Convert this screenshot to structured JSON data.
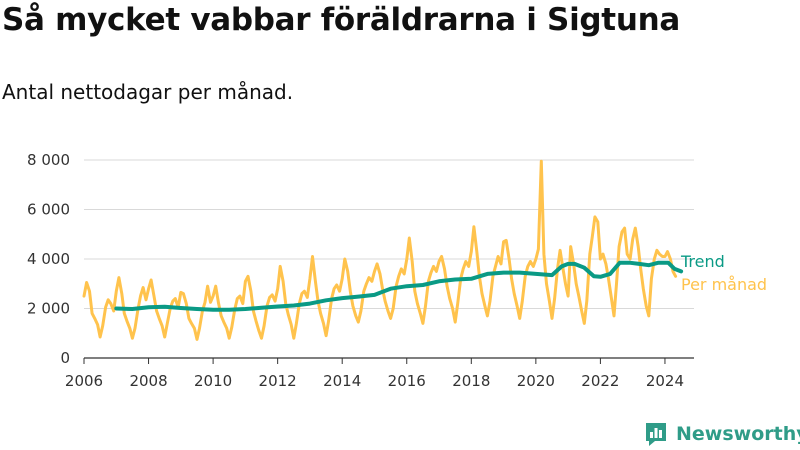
{
  "title": "Så mycket vabbar föräldrarna i Sigtuna",
  "subtitle": "Antal nettodagar per månad.",
  "logo": {
    "text": "Newsworthy",
    "color": "#2f9c88",
    "icon": "chat-bar-chart-icon"
  },
  "colors": {
    "trend": "#0a9a85",
    "monthly": "#ffc34d",
    "grid": "#d9d9d9",
    "axis": "#333333"
  },
  "chart_data": {
    "type": "line",
    "title": "Så mycket vabbar föräldrarna i Sigtuna",
    "subtitle": "Antal nettodagar per månad.",
    "ylim": [
      0,
      8000
    ],
    "yticks": [
      0,
      2000,
      4000,
      6000,
      8000
    ],
    "ytick_labels": [
      "0",
      "2 000",
      "4 000",
      "6 000",
      "8 000"
    ],
    "xlim": [
      2006,
      2024.9
    ],
    "xticks": [
      2006,
      2008,
      2010,
      2012,
      2014,
      2016,
      2018,
      2020,
      2022,
      2024
    ],
    "xtick_labels": [
      "2006",
      "2008",
      "2010",
      "2012",
      "2014",
      "2016",
      "2018",
      "2020",
      "2022",
      "2024"
    ],
    "grid": true,
    "legend": "right, labels at line ends",
    "series": [
      {
        "name": "Per månad",
        "color": "#ffc34d",
        "x": [
          2006.0,
          2006.08,
          2006.17,
          2006.25,
          2006.33,
          2006.42,
          2006.5,
          2006.58,
          2006.67,
          2006.75,
          2006.83,
          2006.92,
          2007.0,
          2007.08,
          2007.17,
          2007.25,
          2007.33,
          2007.42,
          2007.5,
          2007.58,
          2007.67,
          2007.75,
          2007.83,
          2007.92,
          2008.0,
          2008.08,
          2008.17,
          2008.25,
          2008.33,
          2008.42,
          2008.5,
          2008.58,
          2008.67,
          2008.75,
          2008.83,
          2008.92,
          2009.0,
          2009.08,
          2009.17,
          2009.25,
          2009.33,
          2009.42,
          2009.5,
          2009.58,
          2009.67,
          2009.75,
          2009.83,
          2009.92,
          2010.0,
          2010.08,
          2010.17,
          2010.25,
          2010.33,
          2010.42,
          2010.5,
          2010.58,
          2010.67,
          2010.75,
          2010.83,
          2010.92,
          2011.0,
          2011.08,
          2011.17,
          2011.25,
          2011.33,
          2011.42,
          2011.5,
          2011.58,
          2011.67,
          2011.75,
          2011.83,
          2011.92,
          2012.0,
          2012.08,
          2012.17,
          2012.25,
          2012.33,
          2012.42,
          2012.5,
          2012.58,
          2012.67,
          2012.75,
          2012.83,
          2012.92,
          2013.0,
          2013.08,
          2013.17,
          2013.25,
          2013.33,
          2013.42,
          2013.5,
          2013.58,
          2013.67,
          2013.75,
          2013.83,
          2013.92,
          2014.0,
          2014.08,
          2014.17,
          2014.25,
          2014.33,
          2014.42,
          2014.5,
          2014.58,
          2014.67,
          2014.75,
          2014.83,
          2014.92,
          2015.0,
          2015.08,
          2015.17,
          2015.25,
          2015.33,
          2015.42,
          2015.5,
          2015.58,
          2015.67,
          2015.75,
          2015.83,
          2015.92,
          2016.0,
          2016.08,
          2016.17,
          2016.25,
          2016.33,
          2016.42,
          2016.5,
          2016.58,
          2016.67,
          2016.75,
          2016.83,
          2016.92,
          2017.0,
          2017.08,
          2017.17,
          2017.25,
          2017.33,
          2017.42,
          2017.5,
          2017.58,
          2017.67,
          2017.75,
          2017.83,
          2017.92,
          2018.0,
          2018.08,
          2018.17,
          2018.25,
          2018.33,
          2018.42,
          2018.5,
          2018.58,
          2018.67,
          2018.75,
          2018.83,
          2018.92,
          2019.0,
          2019.08,
          2019.17,
          2019.25,
          2019.33,
          2019.42,
          2019.5,
          2019.58,
          2019.67,
          2019.75,
          2019.83,
          2019.92,
          2020.0,
          2020.08,
          2020.17,
          2020.25,
          2020.33,
          2020.42,
          2020.5,
          2020.58,
          2020.67,
          2020.75,
          2020.83,
          2020.92,
          2021.0,
          2021.08,
          2021.17,
          2021.25,
          2021.33,
          2021.42,
          2021.5,
          2021.58,
          2021.67,
          2021.75,
          2021.83,
          2021.92,
          2022.0,
          2022.08,
          2022.17,
          2022.25,
          2022.33,
          2022.42,
          2022.5,
          2022.58,
          2022.67,
          2022.75,
          2022.83,
          2022.92,
          2023.0,
          2023.08,
          2023.17,
          2023.25,
          2023.33,
          2023.42,
          2023.5,
          2023.58,
          2023.67,
          2023.75,
          2023.83,
          2023.92,
          2024.0,
          2024.08,
          2024.17,
          2024.25,
          2024.33
        ],
        "y": [
          2500,
          3050,
          2700,
          1800,
          1600,
          1350,
          850,
          1300,
          2050,
          2350,
          2200,
          1900,
          2700,
          3250,
          2600,
          1800,
          1500,
          1200,
          800,
          1200,
          1950,
          2500,
          2850,
          2350,
          2800,
          3150,
          2500,
          1900,
          1600,
          1300,
          850,
          1400,
          2000,
          2300,
          2400,
          2050,
          2650,
          2600,
          2200,
          1600,
          1400,
          1200,
          750,
          1200,
          1900,
          2250,
          2900,
          2250,
          2500,
          2900,
          2200,
          1700,
          1450,
          1200,
          800,
          1250,
          1950,
          2400,
          2500,
          2200,
          3100,
          3300,
          2700,
          1900,
          1500,
          1100,
          800,
          1300,
          2100,
          2450,
          2550,
          2300,
          2800,
          3700,
          3100,
          2200,
          1750,
          1350,
          800,
          1400,
          2200,
          2600,
          2700,
          2450,
          3200,
          4100,
          3100,
          2300,
          1800,
          1400,
          900,
          1500,
          2400,
          2800,
          2950,
          2700,
          3200,
          4000,
          3500,
          2700,
          2100,
          1700,
          1450,
          1900,
          2700,
          3000,
          3250,
          3100,
          3500,
          3800,
          3400,
          2800,
          2300,
          1900,
          1600,
          2000,
          2900,
          3300,
          3600,
          3400,
          4000,
          4850,
          3900,
          2700,
          2200,
          1800,
          1400,
          2100,
          3100,
          3450,
          3700,
          3500,
          3900,
          4100,
          3600,
          2900,
          2400,
          2000,
          1450,
          2200,
          3200,
          3600,
          3900,
          3700,
          4300,
          5300,
          4300,
          3300,
          2600,
          2100,
          1700,
          2300,
          3300,
          3700,
          4100,
          3800,
          4700,
          4750,
          4000,
          3200,
          2600,
          2100,
          1600,
          2300,
          3300,
          3700,
          3900,
          3700,
          4000,
          4400,
          7950,
          4200,
          3000,
          2300,
          1600,
          2400,
          3600,
          4350,
          3700,
          3000,
          2500,
          4500,
          3800,
          3000,
          2500,
          1900,
          1400,
          2300,
          4200,
          4900,
          5700,
          5500,
          4000,
          4200,
          3800,
          3200,
          2500,
          1700,
          3000,
          4500,
          5100,
          5250,
          4200,
          4000,
          4800,
          5250,
          4500,
          3600,
          2800,
          2100,
          1700,
          3200,
          4000,
          4350,
          4200,
          4100,
          4100,
          4300,
          4000,
          3500,
          3300
        ]
      },
      {
        "name": "Trend",
        "color": "#0a9a85",
        "x": [
          2007.0,
          2007.5,
          2008.0,
          2008.5,
          2009.0,
          2009.5,
          2010.0,
          2010.5,
          2011.0,
          2011.5,
          2012.0,
          2012.5,
          2013.0,
          2013.5,
          2014.0,
          2014.5,
          2015.0,
          2015.5,
          2016.0,
          2016.5,
          2017.0,
          2017.5,
          2018.0,
          2018.5,
          2019.0,
          2019.5,
          2020.0,
          2020.5,
          2020.8,
          2021.0,
          2021.2,
          2021.5,
          2021.8,
          2022.0,
          2022.3,
          2022.6,
          2022.9,
          2023.2,
          2023.5,
          2023.8,
          2024.1,
          2024.3,
          2024.5
        ],
        "y": [
          2000,
          1980,
          2050,
          2070,
          2020,
          1980,
          1950,
          1950,
          1980,
          2030,
          2080,
          2120,
          2200,
          2330,
          2420,
          2480,
          2550,
          2800,
          2900,
          2950,
          3100,
          3170,
          3200,
          3400,
          3450,
          3450,
          3400,
          3350,
          3700,
          3800,
          3800,
          3650,
          3300,
          3280,
          3400,
          3850,
          3850,
          3800,
          3750,
          3850,
          3850,
          3600,
          3500
        ]
      }
    ]
  }
}
